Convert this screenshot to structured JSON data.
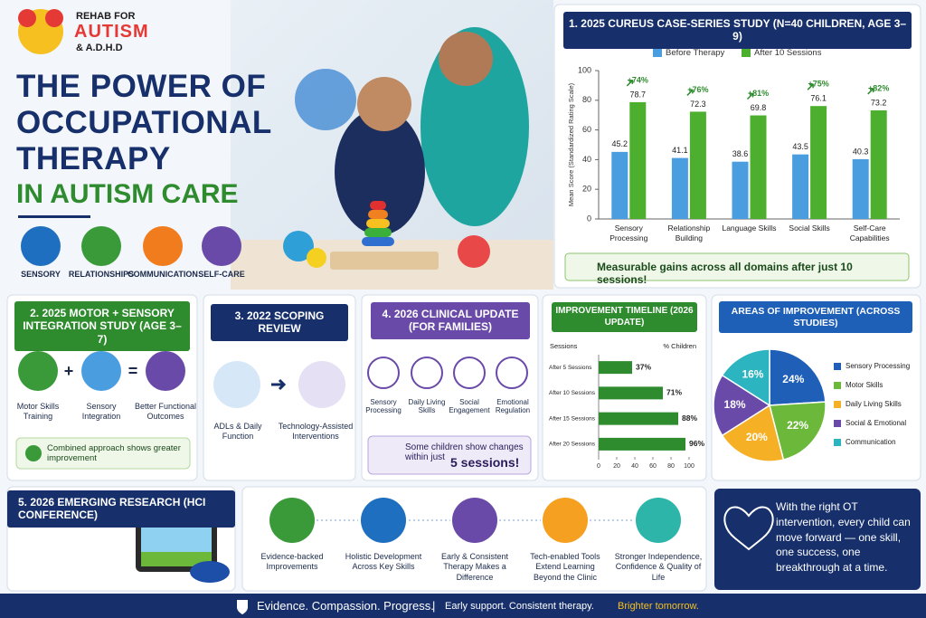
{
  "logo": {
    "line1": "REHAB FOR",
    "line2": "AUTISM",
    "line3": "& A.D.H.D"
  },
  "header": {
    "title_lines": [
      "THE POWER OF",
      "OCCUPATIONAL",
      "THERAPY"
    ],
    "subtitle": "IN AUTISM CARE"
  },
  "focus_areas": [
    "SENSORY",
    "RELATIONSHIPS",
    "COMMUNICATION",
    "SELF-CARE"
  ],
  "study_1": {
    "callout": "Measurable gains across all domains after just 10 sessions!"
  },
  "study_2": {
    "title": "2. 2025 MOTOR + SENSORY INTEGRATION STUDY (AGE 3–7)",
    "items": [
      "Motor Skills Training",
      "Sensory Integration",
      "Better Functional Outcomes"
    ],
    "operators": [
      "+",
      "="
    ],
    "note": "Combined approach shows greater improvement"
  },
  "study_3": {
    "title": "3. 2022 SCOPING REVIEW",
    "items": [
      "ADLs & Daily Function",
      "Technology-Assisted Interventions"
    ]
  },
  "study_4": {
    "title": "4. 2026 CLINICAL UPDATE (FOR FAMILIES)",
    "items": [
      "Sensory Processing",
      "Daily Living Skills",
      "Social Engagement",
      "Emotional Regulation"
    ],
    "note": "Some children show changes within just",
    "highlight": "5 sessions!"
  },
  "study_5": {
    "title": "5. 2026 EMERGING RESEARCH (HCI CONFERENCE)"
  },
  "benefits": [
    "Evidence-backed Improvements",
    "Holistic Development Across Key Skills",
    "Early & Consistent Therapy Makes a Difference",
    "Tech-enabled Tools Extend Learning Beyond the Clinic",
    "Stronger Independence, Confidence & Quality of Life"
  ],
  "quote": "With the right OT intervention, every child can move forward — one skill, one success, one breakthrough at a time.",
  "footer": {
    "tagline": "Evidence. Compassion. Progress.",
    "separator": "|",
    "message": "Early support. Consistent therapy.",
    "highlight": "Brighter tomorrow."
  },
  "chart_data": [
    {
      "type": "bar",
      "title": "1. 2025 CUREUS CASE-SERIES STUDY (N=40 CHILDREN, AGE 3–9)",
      "ylabel": "Mean Score (Standardized Rating Scale)",
      "categories": [
        "Sensory Processing",
        "Relationship Building",
        "Language Skills",
        "Social Skills",
        "Self-Care Capabilities"
      ],
      "series": [
        {
          "name": "Before Therapy",
          "color": "#4a9ee0",
          "values": [
            45.2,
            41.1,
            38.6,
            43.5,
            40.3
          ]
        },
        {
          "name": "After 10 Sessions",
          "color": "#4caf2e",
          "values": [
            78.7,
            72.3,
            69.8,
            76.1,
            73.2
          ]
        }
      ],
      "gain_labels": [
        "+74%",
        "+76%",
        "+81%",
        "+75%",
        "+82%"
      ],
      "ylim": [
        0,
        100
      ],
      "yticks": [
        0,
        20,
        40,
        60,
        80,
        100
      ]
    },
    {
      "type": "hbar",
      "title": "IMPROVEMENT TIMELINE (2026 UPDATE)",
      "ylabel": "Sessions",
      "xlabel": "% Children",
      "categories": [
        "After 5 Sessions",
        "After 10 Sessions",
        "After 15 Sessions",
        "After 20 Sessions"
      ],
      "values": [
        37,
        71,
        88,
        96
      ],
      "value_labels": [
        "37%",
        "71%",
        "88%",
        "96%"
      ],
      "color": "#2e8b2e",
      "xlim": [
        0,
        100
      ],
      "xticks": [
        0,
        20,
        40,
        60,
        80,
        100
      ]
    },
    {
      "type": "pie",
      "title": "AREAS OF IMPROVEMENT (ACROSS STUDIES)",
      "categories": [
        "Sensory Processing",
        "Motor Skills",
        "Daily Living Skills",
        "Social & Emotional",
        "Communication"
      ],
      "values": [
        24,
        22,
        20,
        18,
        16
      ],
      "value_labels": [
        "24%",
        "22%",
        "20%",
        "18%",
        "16%"
      ],
      "colors": [
        "#1f5fb8",
        "#6bb83a",
        "#f5b026",
        "#6a4aa8",
        "#2cb5c0"
      ]
    }
  ]
}
